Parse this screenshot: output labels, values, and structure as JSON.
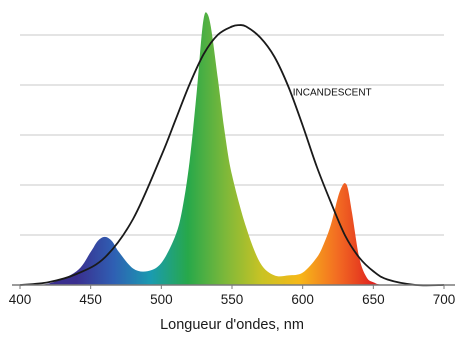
{
  "colors": {
    "grid": "#c8c8c8",
    "axis": "#7a7a7a",
    "incandescent_curve": "#1a1a1a",
    "spectrum_stops": [
      "#3a2f8f",
      "#2f5fb3",
      "#1a9bb0",
      "#27a84a",
      "#7cb83a",
      "#c9c324",
      "#f6b818",
      "#f36f22",
      "#e0231f"
    ]
  },
  "chart_data": {
    "type": "area",
    "xlabel": "Longueur d'ondes, nm",
    "ylabel": "",
    "xlim": [
      400,
      700
    ],
    "ylim": [
      0,
      1.0
    ],
    "x_ticks": [
      400,
      450,
      500,
      550,
      600,
      650,
      700
    ],
    "grid": "horizontal",
    "series": [
      {
        "kind": "filled-spectrum",
        "x": [
          400,
          420,
          440,
          450,
          455,
          460,
          465,
          470,
          480,
          490,
          500,
          510,
          515,
          520,
          525,
          528,
          530,
          532,
          535,
          540,
          545,
          550,
          560,
          570,
          580,
          590,
          600,
          610,
          615,
          620,
          625,
          628,
          630,
          632,
          635,
          640,
          645,
          650,
          660,
          700
        ],
        "values": [
          0,
          0.005,
          0.05,
          0.12,
          0.16,
          0.175,
          0.16,
          0.12,
          0.06,
          0.05,
          0.08,
          0.18,
          0.28,
          0.45,
          0.7,
          0.88,
          0.97,
          0.99,
          0.94,
          0.75,
          0.55,
          0.4,
          0.21,
          0.08,
          0.035,
          0.035,
          0.045,
          0.1,
          0.15,
          0.22,
          0.32,
          0.36,
          0.37,
          0.35,
          0.26,
          0.1,
          0.03,
          0.01,
          0,
          0
        ]
      },
      {
        "name": "INCANDESCENT",
        "kind": "curve",
        "x": [
          400,
          420,
          440,
          460,
          480,
          500,
          510,
          520,
          530,
          540,
          550,
          555,
          560,
          570,
          580,
          590,
          600,
          610,
          620,
          630,
          640,
          650,
          660,
          680,
          700
        ],
        "values": [
          0,
          0.01,
          0.04,
          0.1,
          0.24,
          0.47,
          0.6,
          0.73,
          0.84,
          0.91,
          0.94,
          0.945,
          0.94,
          0.9,
          0.83,
          0.72,
          0.58,
          0.43,
          0.3,
          0.18,
          0.1,
          0.05,
          0.02,
          0,
          0
        ]
      }
    ],
    "annotations": [
      {
        "text": "INCANDESCENT",
        "x": 593,
        "y": 0.69
      }
    ]
  }
}
